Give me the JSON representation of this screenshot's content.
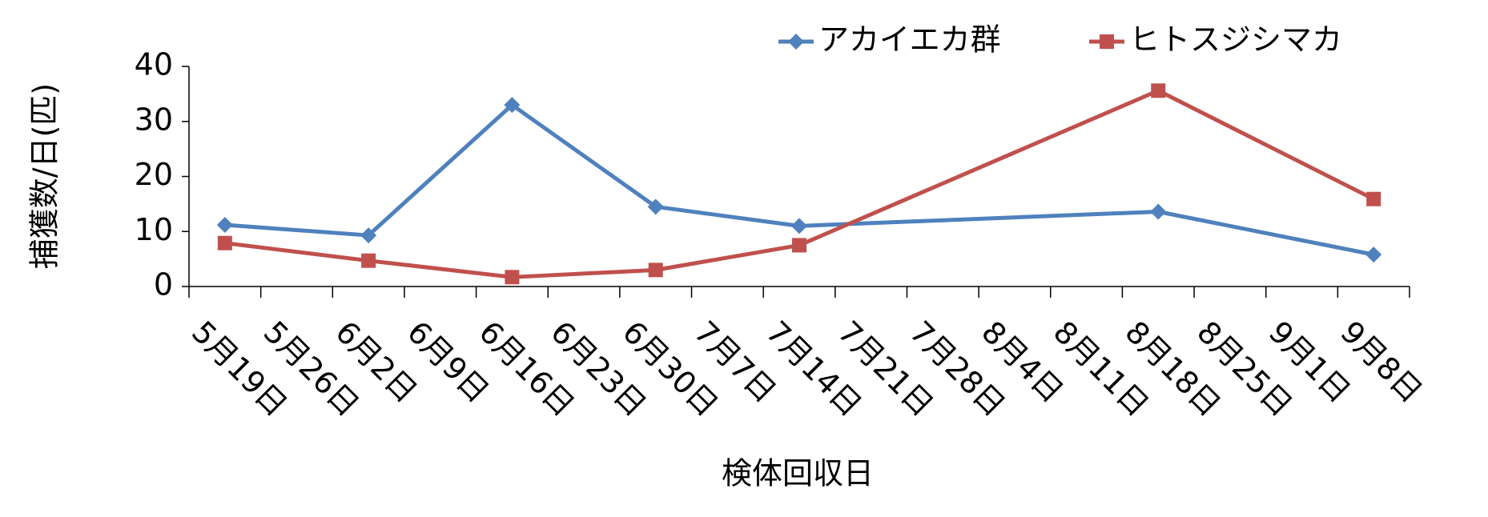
{
  "chart_data": {
    "type": "line",
    "x_label": "検体回収日",
    "y_label": "捕獲数/日(匹)",
    "categories": [
      "5月19日",
      "5月26日",
      "6月2日",
      "6月9日",
      "6月16日",
      "6月23日",
      "6月30日",
      "7月7日",
      "7月14日",
      "7月21日",
      "7月28日",
      "8月4日",
      "8月11日",
      "8月18日",
      "8月25日",
      "9月1日",
      "9月8日"
    ],
    "series": [
      {
        "name": "アカイエカ群",
        "color": "#4f81bd",
        "marker": "diamond",
        "values": [
          11.2,
          null,
          9.3,
          null,
          33,
          null,
          14.5,
          null,
          11,
          null,
          null,
          null,
          null,
          13.6,
          null,
          null,
          5.8
        ]
      },
      {
        "name": "ヒトスジシマカ",
        "color": "#c0504d",
        "marker": "square",
        "values": [
          7.9,
          null,
          4.7,
          null,
          1.7,
          null,
          3,
          null,
          7.5,
          null,
          null,
          null,
          null,
          35.6,
          null,
          null,
          15.9
        ]
      }
    ],
    "connect_gaps": true,
    "ylim": [
      0,
      40
    ],
    "yticks": [
      0,
      10,
      20,
      30,
      40
    ],
    "grid": false,
    "legend": "top"
  }
}
